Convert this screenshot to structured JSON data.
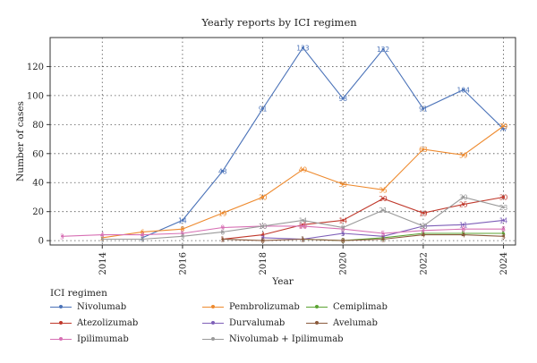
{
  "chart_data": {
    "type": "line",
    "title": "Yearly reports by ICI regimen",
    "xlabel": "Year",
    "ylabel": "Number of cases",
    "xlim": [
      2012.7,
      2024.3
    ],
    "ylim": [
      -3,
      140
    ],
    "xticks": [
      2014,
      2016,
      2018,
      2020,
      2022,
      2024
    ],
    "yticks": [
      0,
      20,
      40,
      60,
      80,
      100,
      120
    ],
    "grid": true,
    "legend_title": "ICI regimen",
    "legend_position": "bottom",
    "series": [
      {
        "name": "Nivolumab",
        "color": "#4a72b8",
        "x": [
          2015,
          2016,
          2017,
          2018,
          2019,
          2020,
          2021,
          2022,
          2023,
          2024
        ],
        "y": [
          2,
          14,
          48,
          91,
          133,
          98,
          132,
          91,
          104,
          77
        ],
        "labels": [
          "2",
          "14",
          "48",
          "91",
          "133",
          "98",
          "132",
          "91",
          "104",
          "77"
        ]
      },
      {
        "name": "Pembrolizumab",
        "color": "#ee8a2e",
        "x": [
          2014,
          2015,
          2016,
          2017,
          2018,
          2019,
          2020,
          2021,
          2022,
          2023,
          2024
        ],
        "y": [
          2,
          6,
          8,
          19,
          30,
          49,
          39,
          35,
          63,
          59,
          79
        ],
        "labels": [
          "2",
          "6",
          "8",
          "19",
          "30",
          "49",
          "39",
          "35",
          "63",
          "59",
          "79"
        ]
      },
      {
        "name": "Cemiplimab",
        "color": "#5aa332",
        "x": [
          2019,
          2020,
          2021,
          2022,
          2023,
          2024
        ],
        "y": [
          1,
          0,
          2,
          5,
          5,
          5
        ],
        "labels": [
          "1",
          "0",
          "2",
          "5",
          "5",
          "5"
        ]
      },
      {
        "name": "Atezolizumab",
        "color": "#c0382b",
        "x": [
          2017,
          2018,
          2019,
          2020,
          2021,
          2022,
          2023,
          2024
        ],
        "y": [
          1,
          4,
          11,
          14,
          29,
          19,
          25,
          30
        ],
        "labels": [
          "1",
          "4",
          "11",
          "14",
          "29",
          "19",
          "25",
          "30"
        ]
      },
      {
        "name": "Durvalumab",
        "color": "#7e5fb8",
        "x": [
          2018,
          2019,
          2020,
          2021,
          2022,
          2023,
          2024
        ],
        "y": [
          2,
          1,
          5,
          3,
          10,
          11,
          14
        ],
        "labels": [
          "2",
          "1",
          "5",
          "3",
          "10",
          "11",
          "14"
        ]
      },
      {
        "name": "Avelumab",
        "color": "#8a5a3c",
        "x": [
          2017,
          2018,
          2019,
          2020,
          2021,
          2022,
          2023,
          2024
        ],
        "y": [
          1,
          0,
          1,
          0,
          1,
          4,
          4,
          3
        ],
        "labels": [
          "1",
          "0",
          "1",
          "0",
          "1",
          "4",
          "4",
          "3"
        ]
      },
      {
        "name": "Ipilimumab",
        "color": "#d770b4",
        "x": [
          2013,
          2014,
          2015,
          2016,
          2017,
          2018,
          2019,
          2020,
          2021,
          2022,
          2023,
          2024
        ],
        "y": [
          3,
          4,
          4,
          5,
          9,
          10,
          10,
          8,
          5,
          7,
          8,
          8
        ],
        "labels": [
          "3",
          "4",
          "4",
          "5",
          "9",
          "10",
          "10",
          "8",
          "5",
          "7",
          "8",
          "8"
        ]
      },
      {
        "name": "Nivolumab + Ipilimumab",
        "color": "#9a9a9a",
        "x": [
          2014,
          2015,
          2016,
          2017,
          2018,
          2019,
          2020,
          2021,
          2022,
          2023,
          2024
        ],
        "y": [
          1,
          1,
          3,
          6,
          10,
          14,
          9,
          21,
          10,
          30,
          23
        ],
        "labels": [
          "1",
          "1",
          "3",
          "6",
          "10",
          "14",
          "9",
          "21",
          "10",
          "30",
          "23"
        ]
      }
    ]
  }
}
